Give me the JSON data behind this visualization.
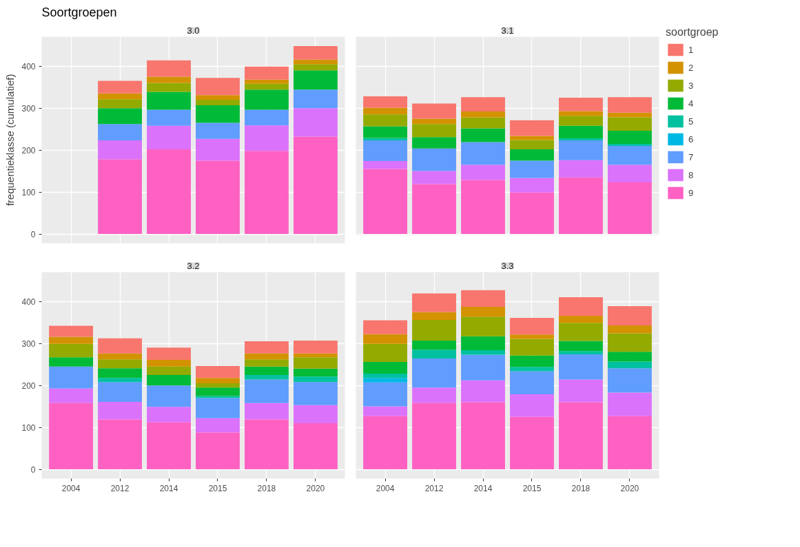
{
  "chart_data": [
    {
      "type": "bar",
      "stacked": true,
      "title": "Soortgroepen",
      "subtitle": "3.0",
      "ylabel": "frequentieklasse (cumulatief)",
      "tick_labels": "y",
      "grid": true,
      "categories": [
        "2004",
        "2012",
        "2014",
        "2015",
        "2018",
        "2020"
      ],
      "ylim": [
        -22,
        470
      ],
      "yticks": [
        0,
        100,
        200,
        300,
        400
      ],
      "series": [
        {
          "color": "#ff61c3",
          "values": [
            null,
            178,
            202,
            175,
            198,
            232
          ]
        },
        {
          "color": "#db72fb",
          "values": [
            null,
            45,
            56,
            52,
            61,
            68
          ]
        },
        {
          "color": "#619cff",
          "values": [
            null,
            39,
            38,
            38,
            37,
            44
          ]
        },
        {
          "color": "#00b9e3",
          "values": [
            null,
            0,
            0,
            0,
            0,
            0
          ]
        },
        {
          "color": "#00c19f",
          "values": [
            null,
            0,
            0,
            0,
            0,
            0
          ]
        },
        {
          "color": "#00ba38",
          "values": [
            null,
            38,
            43,
            42,
            48,
            46
          ]
        },
        {
          "color": "#93aa00",
          "values": [
            null,
            21,
            21,
            13,
            14,
            15
          ]
        },
        {
          "color": "#d39200",
          "values": [
            null,
            14,
            15,
            11,
            10,
            11
          ]
        },
        {
          "color": "#f8766d",
          "values": [
            null,
            30,
            39,
            41,
            31,
            32
          ]
        }
      ]
    },
    {
      "type": "bar",
      "stacked": true,
      "subtitle": "3.1",
      "tick_labels": false,
      "grid": true,
      "legend": "right",
      "legend_title": "soortgroep",
      "categories": [
        "2004",
        "2012",
        "2014",
        "2015",
        "2018",
        "2020"
      ],
      "ylim": [
        -22,
        470
      ],
      "yticks": [
        0,
        100,
        200,
        300,
        400
      ],
      "series": [
        {
          "name": "9",
          "color": "#ff61c3",
          "values": [
            155,
            119,
            129,
            99,
            135,
            123
          ]
        },
        {
          "name": "8",
          "color": "#db72fb",
          "values": [
            19,
            31,
            36,
            35,
            41,
            42
          ]
        },
        {
          "name": "7",
          "color": "#619cff",
          "values": [
            49,
            54,
            54,
            41,
            47,
            45
          ]
        },
        {
          "name": "6",
          "color": "#00b9e3",
          "values": [
            0,
            0,
            0,
            0,
            0,
            0
          ]
        },
        {
          "name": "5",
          "color": "#00c19f",
          "values": [
            6,
            0,
            0,
            0,
            5,
            5
          ]
        },
        {
          "name": "4",
          "color": "#00ba38",
          "values": [
            28,
            27,
            33,
            27,
            30,
            31
          ]
        },
        {
          "name": "3",
          "color": "#93aa00",
          "values": [
            28,
            31,
            26,
            22,
            24,
            32
          ]
        },
        {
          "name": "2",
          "color": "#d39200",
          "values": [
            16,
            13,
            14,
            10,
            11,
            11
          ]
        },
        {
          "name": "1",
          "color": "#f8766d",
          "values": [
            27,
            36,
            34,
            37,
            32,
            37
          ]
        }
      ]
    },
    {
      "type": "bar",
      "stacked": true,
      "subtitle": "3.2",
      "grid": true,
      "categories": [
        "2004",
        "2012",
        "2014",
        "2015",
        "2018",
        "2020"
      ],
      "ylim": [
        -22,
        470
      ],
      "yticks": [
        0,
        100,
        200,
        300,
        400
      ],
      "series": [
        {
          "color": "#ff61c3",
          "values": [
            158,
            119,
            112,
            88,
            119,
            110
          ]
        },
        {
          "color": "#db72fb",
          "values": [
            35,
            42,
            37,
            34,
            39,
            43
          ]
        },
        {
          "color": "#619cff",
          "values": [
            52,
            47,
            51,
            48,
            56,
            55
          ]
        },
        {
          "color": "#00b9e3",
          "values": [
            0,
            0,
            0,
            0,
            0,
            0
          ]
        },
        {
          "color": "#00c19f",
          "values": [
            0,
            10,
            0,
            5,
            11,
            13
          ]
        },
        {
          "color": "#00ba38",
          "values": [
            22,
            23,
            25,
            20,
            20,
            19
          ]
        },
        {
          "color": "#93aa00",
          "values": [
            32,
            21,
            20,
            10,
            17,
            27
          ]
        },
        {
          "color": "#d39200",
          "values": [
            17,
            14,
            16,
            13,
            14,
            9
          ]
        },
        {
          "color": "#f8766d",
          "values": [
            26,
            36,
            29,
            28,
            29,
            31
          ]
        }
      ]
    },
    {
      "type": "bar",
      "stacked": true,
      "subtitle": "3.3",
      "tick_labels": "x",
      "grid": true,
      "categories": [
        "2004",
        "2012",
        "2014",
        "2015",
        "2018",
        "2020"
      ],
      "ylim": [
        -22,
        470
      ],
      "yticks": [
        0,
        100,
        200,
        300,
        400
      ],
      "series": [
        {
          "color": "#ff61c3",
          "values": [
            127,
            158,
            160,
            125,
            160,
            127
          ]
        },
        {
          "color": "#db72fb",
          "values": [
            23,
            37,
            52,
            54,
            54,
            56
          ]
        },
        {
          "color": "#619cff",
          "values": [
            57,
            69,
            61,
            55,
            60,
            58
          ]
        },
        {
          "color": "#00b9e3",
          "values": [
            11,
            0,
            0,
            0,
            0,
            0
          ]
        },
        {
          "color": "#00c19f",
          "values": [
            10,
            21,
            11,
            10,
            8,
            16
          ]
        },
        {
          "color": "#00ba38",
          "values": [
            28,
            22,
            33,
            27,
            24,
            23
          ]
        },
        {
          "color": "#93aa00",
          "values": [
            43,
            49,
            47,
            40,
            43,
            44
          ]
        },
        {
          "color": "#d39200",
          "values": [
            23,
            19,
            23,
            10,
            17,
            19
          ]
        },
        {
          "color": "#f8766d",
          "values": [
            33,
            44,
            40,
            40,
            44,
            46
          ]
        }
      ]
    }
  ]
}
